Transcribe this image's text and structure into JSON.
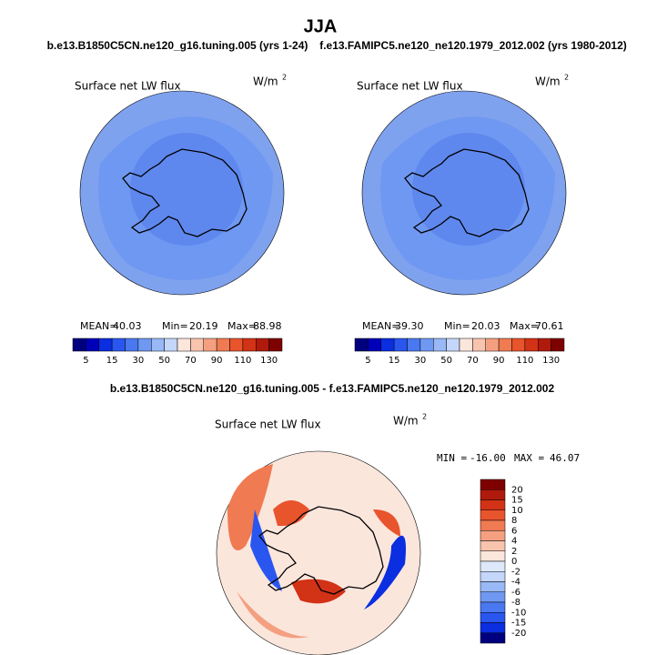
{
  "title": "JJA",
  "case_a": "b.e13.B1850C5CN.ne120_g16.tuning.005 (yrs 1-24)",
  "case_b": "f.e13.FAMIPC5.ne120_ne120.1979_2012.002 (yrs 1980-2012)",
  "diff_title": "b.e13.B1850C5CN.ne120_g16.tuning.005 - f.e13.FAMIPC5.ne120_ne120.1979_2012.002",
  "panels": [
    {
      "variable": "Surface net LW flux",
      "units": {
        "base": "W/m",
        "sup": "2"
      },
      "stats": [
        {
          "label": "MEAN=",
          "value": "40.03"
        },
        {
          "label": "Min=",
          "value": "20.19"
        },
        {
          "label": "Max=",
          "value": "88.98"
        }
      ]
    },
    {
      "variable": "Surface net LW flux",
      "units": {
        "base": "W/m",
        "sup": "2"
      },
      "stats": [
        {
          "label": "MEAN=",
          "value": "39.30"
        },
        {
          "label": "Min=",
          "value": "20.03"
        },
        {
          "label": "Max=",
          "value": "70.61"
        }
      ]
    },
    {
      "variable": "Surface net LW flux",
      "units": {
        "base": "W/m",
        "sup": "2"
      },
      "stats": [
        {
          "label": "MIN =",
          "value": "-16.00"
        },
        {
          "label": "MAX =",
          "value": "46.07"
        }
      ]
    }
  ],
  "colorbar": {
    "labels": [
      5,
      15,
      30,
      50,
      70,
      90,
      110,
      130
    ],
    "colors": [
      "#00007f",
      "#0000b8",
      "#0a2ee0",
      "#2a56f0",
      "#4a78f0",
      "#6f98f2",
      "#98b8f6",
      "#c4d6fa",
      "#fbe6dc",
      "#f8c4ae",
      "#f4a080",
      "#f07a52",
      "#e8542c",
      "#d23216",
      "#b01a0c",
      "#7f0000"
    ]
  },
  "diff_colorbar": {
    "labels": [
      20,
      15,
      10,
      8,
      6,
      4,
      2,
      0,
      -2,
      -4,
      -6,
      -8,
      -10,
      -15,
      -20
    ],
    "colors": [
      "#7f0000",
      "#b01a0c",
      "#d23216",
      "#e8542c",
      "#f07a52",
      "#f4a080",
      "#f8c4ae",
      "#fbe6dc",
      "#dde8fa",
      "#c4d6fa",
      "#98b8f6",
      "#6f98f2",
      "#4a78f0",
      "#2a56f0",
      "#0a2ee0",
      "#00007f"
    ]
  }
}
